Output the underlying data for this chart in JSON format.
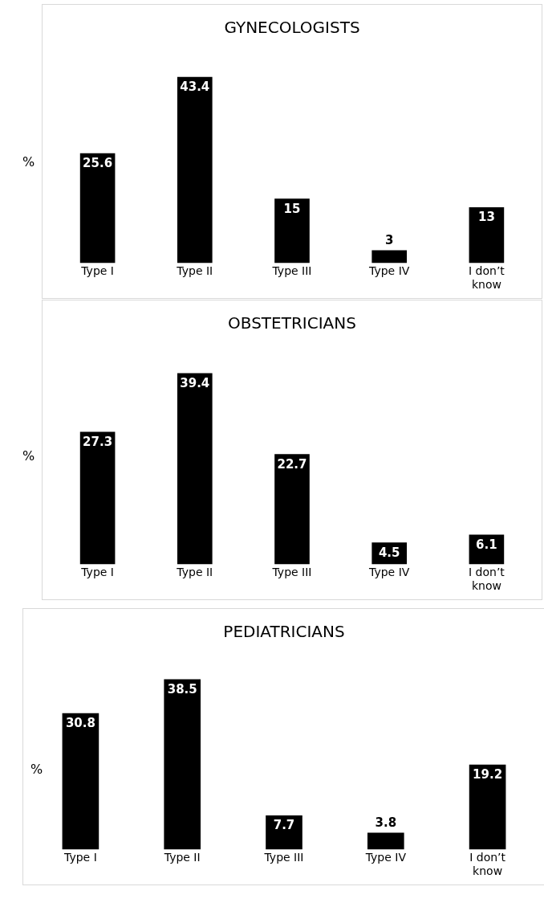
{
  "chart_data": [
    {
      "type": "bar",
      "title": "GYNECOLOGISTS",
      "ylabel": "%",
      "categories": [
        "Type I",
        "Type II",
        "Type III",
        "Type IV",
        "I don’t know"
      ],
      "values": [
        25.6,
        43.4,
        15,
        3,
        13
      ],
      "color": "#000000",
      "data_labels": true,
      "grid": false,
      "legend": false
    },
    {
      "type": "bar",
      "title": "OBSTETRICIANS",
      "ylabel": "%",
      "categories": [
        "Type I",
        "Type II",
        "Type III",
        "Type IV",
        "I don’t know"
      ],
      "values": [
        27.3,
        39.4,
        22.7,
        4.5,
        6.1
      ],
      "color": "#000000",
      "data_labels": true,
      "grid": false,
      "legend": false
    },
    {
      "type": "bar",
      "title": "PEDIATRICIANS",
      "ylabel": "%",
      "categories": [
        "Type I",
        "Type II",
        "Type III",
        "Type IV",
        "I don’t know"
      ],
      "values": [
        30.8,
        38.5,
        7.7,
        3.8,
        19.2
      ],
      "color": "#000000",
      "data_labels": true,
      "grid": false,
      "legend": false
    }
  ]
}
